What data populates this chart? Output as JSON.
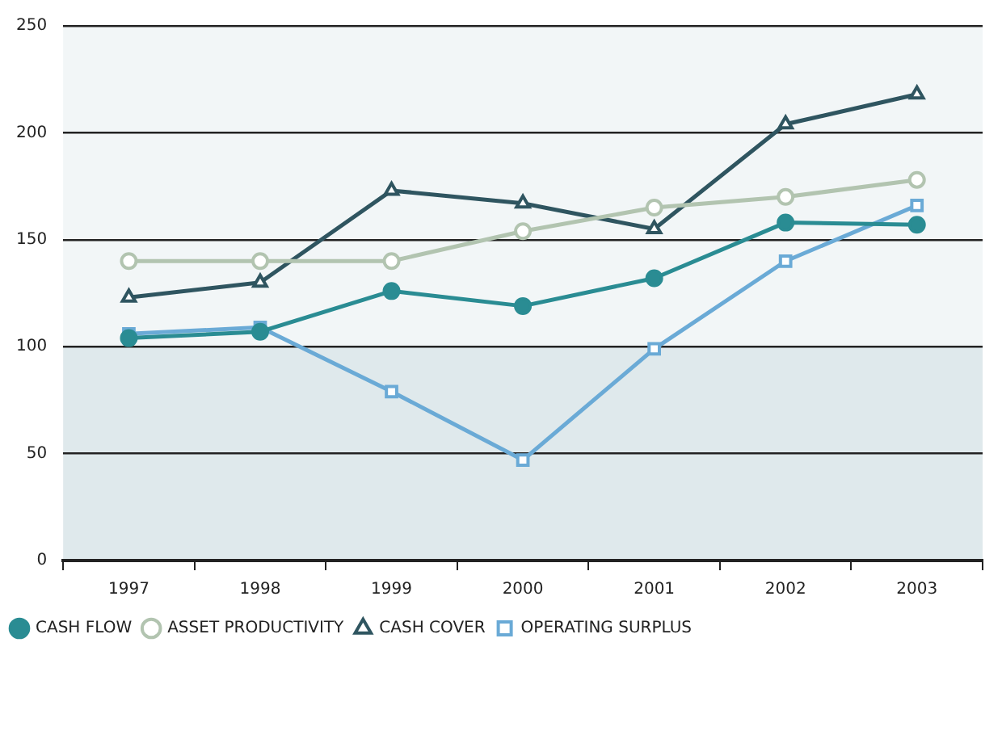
{
  "chart_data": {
    "type": "line",
    "categories": [
      "1997",
      "1998",
      "1999",
      "2000",
      "2001",
      "2002",
      "2003"
    ],
    "series": [
      {
        "name": "OPERATING SURPLUS",
        "color": "#6aaad6",
        "marker": "square",
        "values": [
          106,
          109,
          79,
          47,
          99,
          140,
          166
        ]
      },
      {
        "name": "CASH COVER",
        "color": "#2f5560",
        "marker": "triangle",
        "values": [
          123,
          130,
          173,
          167,
          155,
          204,
          218
        ]
      },
      {
        "name": "ASSET PRODUCTIVITY",
        "color": "#b2c4b0",
        "marker": "circle",
        "values": [
          140,
          140,
          140,
          154,
          165,
          170,
          178
        ]
      },
      {
        "name": "CASH FLOW",
        "color": "#2a8c93",
        "marker": "filled-circle",
        "values": [
          104,
          107,
          126,
          119,
          132,
          158,
          157
        ]
      }
    ],
    "ylim": [
      0,
      250
    ],
    "yticks": [
      0,
      50,
      100,
      150,
      200,
      250
    ],
    "grid": "y",
    "legend": "bottom left",
    "bands": [
      {
        "axis": "y",
        "from": 0,
        "to": 100,
        "color": "#dfe9ec"
      },
      {
        "axis": "y",
        "from": 100,
        "to": 250,
        "color": "#f2f6f7"
      }
    ]
  }
}
